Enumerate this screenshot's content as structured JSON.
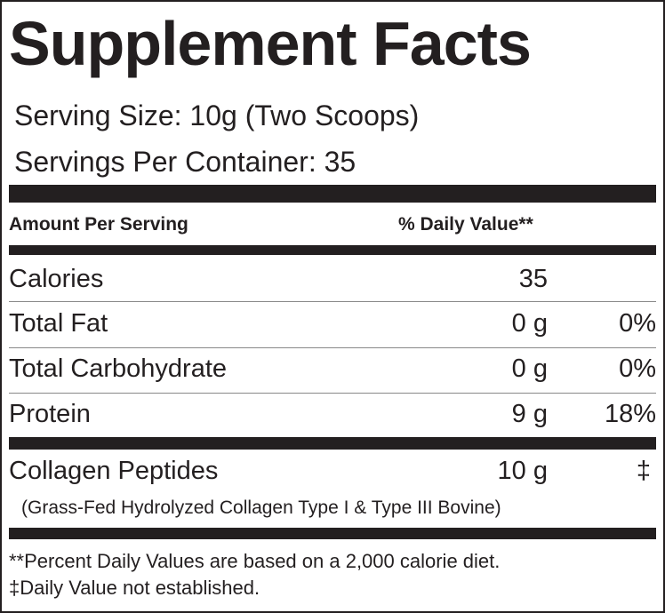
{
  "header": {
    "title": "Supplement Facts",
    "serving_size": "Serving Size: 10g (Two Scoops)",
    "servings_per_container": "Servings Per Container: 35"
  },
  "table": {
    "columns": [
      "Amount Per Serving",
      "% Daily Value**"
    ],
    "rows": [
      {
        "name": "Calories",
        "amount": "35"
      },
      {
        "name": "Total Fat",
        "amount": "0 g",
        "daily_value": "0%"
      },
      {
        "name": "Total Carbohydrate",
        "amount": "0 g",
        "daily_value": "0%"
      },
      {
        "name": "Protein",
        "amount": "9 g",
        "daily_value": "18%"
      },
      {
        "name": "Collagen Peptides",
        "amount": "10 g",
        "daily_value": "‡",
        "note": "(Grass-Fed Hydrolyzed Collagen Type I & Type III Bovine)"
      }
    ]
  },
  "footnotes": [
    "**Percent Daily Values are based on a 2,000 calorie diet.",
    "‡Daily Value not established."
  ]
}
